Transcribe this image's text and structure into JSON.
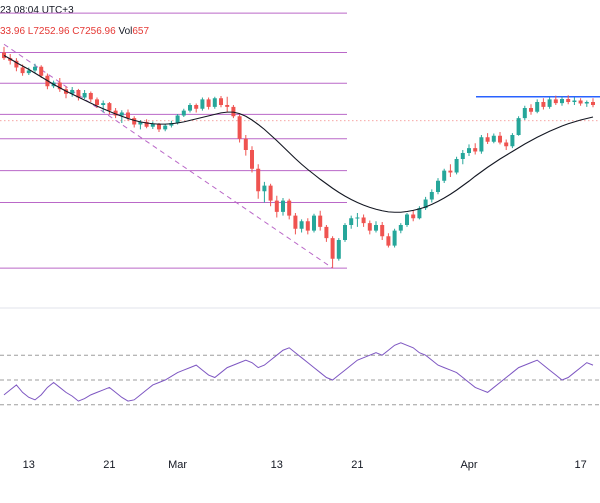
{
  "header": {
    "time_text": "23 08:04 UTC+3",
    "ohlc_text": "33.96  L7252.96  C7256.96",
    "vol_label": "Vol",
    "vol_value": "657"
  },
  "colors": {
    "up": "#26a69a",
    "down": "#ef5350",
    "fib_line": "#ba68c8",
    "ma_line": "#131722",
    "resistance": "#2962ff",
    "rsi_line": "#7e57c2",
    "rsi_band": "#9e9e9e"
  },
  "chart_data": [
    {
      "type": "candlestick",
      "title": "",
      "x": [
        "13",
        "21",
        "Mar",
        "13",
        "21",
        "Apr",
        "17"
      ],
      "xlabel": "",
      "ylabel": "",
      "ylim": [
        6900,
        7700
      ],
      "ohlc": [
        [
          7560,
          7575,
          7540,
          7545
        ],
        [
          7545,
          7556,
          7528,
          7538
        ],
        [
          7538,
          7545,
          7510,
          7520
        ],
        [
          7520,
          7528,
          7498,
          7505
        ],
        [
          7505,
          7520,
          7500,
          7512
        ],
        [
          7512,
          7530,
          7505,
          7522
        ],
        [
          7522,
          7526,
          7492,
          7498
        ],
        [
          7498,
          7504,
          7462,
          7470
        ],
        [
          7470,
          7485,
          7465,
          7480
        ],
        [
          7480,
          7492,
          7455,
          7462
        ],
        [
          7462,
          7470,
          7438,
          7450
        ],
        [
          7450,
          7468,
          7442,
          7460
        ],
        [
          7460,
          7463,
          7432,
          7440
        ],
        [
          7440,
          7460,
          7436,
          7452
        ],
        [
          7452,
          7456,
          7428,
          7435
        ],
        [
          7435,
          7440,
          7412,
          7420
        ],
        [
          7420,
          7432,
          7400,
          7425
        ],
        [
          7425,
          7428,
          7395,
          7405
        ],
        [
          7405,
          7412,
          7385,
          7392
        ],
        [
          7392,
          7406,
          7372,
          7400
        ],
        [
          7400,
          7408,
          7378,
          7385
        ],
        [
          7385,
          7390,
          7360,
          7368
        ],
        [
          7368,
          7380,
          7355,
          7375
        ],
        [
          7375,
          7382,
          7358,
          7362
        ],
        [
          7362,
          7376,
          7356,
          7370
        ],
        [
          7370,
          7372,
          7348,
          7355
        ],
        [
          7355,
          7368,
          7350,
          7365
        ],
        [
          7365,
          7378,
          7360,
          7372
        ],
        [
          7372,
          7396,
          7368,
          7392
        ],
        [
          7392,
          7410,
          7388,
          7405
        ],
        [
          7405,
          7425,
          7400,
          7420
        ],
        [
          7420,
          7424,
          7400,
          7410
        ],
        [
          7410,
          7440,
          7405,
          7435
        ],
        [
          7435,
          7440,
          7408,
          7415
        ],
        [
          7415,
          7442,
          7410,
          7438
        ],
        [
          7438,
          7444,
          7414,
          7420
        ],
        [
          7420,
          7442,
          7402,
          7415
        ],
        [
          7415,
          7420,
          7385,
          7390
        ],
        [
          7390,
          7395,
          7320,
          7330
        ],
        [
          7330,
          7340,
          7285,
          7300
        ],
        [
          7300,
          7310,
          7240,
          7250
        ],
        [
          7250,
          7262,
          7170,
          7190
        ],
        [
          7190,
          7215,
          7160,
          7205
        ],
        [
          7205,
          7210,
          7150,
          7165
        ],
        [
          7165,
          7178,
          7120,
          7135
        ],
        [
          7135,
          7172,
          7125,
          7165
        ],
        [
          7165,
          7170,
          7115,
          7125
        ],
        [
          7125,
          7132,
          7075,
          7090
        ],
        [
          7090,
          7115,
          7080,
          7110
        ],
        [
          7110,
          7118,
          7075,
          7085
        ],
        [
          7085,
          7130,
          7080,
          7125
        ],
        [
          7125,
          7138,
          7085,
          7095
        ],
        [
          7095,
          7100,
          7055,
          7065
        ],
        [
          7065,
          7070,
          6985,
          7010
        ],
        [
          7010,
          7065,
          7005,
          7060
        ],
        [
          7060,
          7105,
          7055,
          7100
        ],
        [
          7100,
          7125,
          7090,
          7118
        ],
        [
          7118,
          7132,
          7095,
          7120
        ],
        [
          7120,
          7128,
          7095,
          7105
        ],
        [
          7105,
          7112,
          7075,
          7085
        ],
        [
          7085,
          7110,
          7080,
          7100
        ],
        [
          7100,
          7108,
          7060,
          7070
        ],
        [
          7070,
          7078,
          7040,
          7045
        ],
        [
          7045,
          7090,
          7040,
          7085
        ],
        [
          7085,
          7105,
          7078,
          7100
        ],
        [
          7100,
          7132,
          7095,
          7128
        ],
        [
          7128,
          7140,
          7110,
          7118
        ],
        [
          7118,
          7150,
          7115,
          7145
        ],
        [
          7145,
          7175,
          7140,
          7168
        ],
        [
          7168,
          7195,
          7160,
          7188
        ],
        [
          7188,
          7225,
          7182,
          7218
        ],
        [
          7218,
          7250,
          7212,
          7245
        ],
        [
          7245,
          7262,
          7228,
          7240
        ],
        [
          7240,
          7282,
          7235,
          7276
        ],
        [
          7276,
          7300,
          7262,
          7292
        ],
        [
          7292,
          7315,
          7284,
          7305
        ],
        [
          7305,
          7318,
          7288,
          7296
        ],
        [
          7296,
          7340,
          7290,
          7334
        ],
        [
          7334,
          7345,
          7316,
          7322
        ],
        [
          7322,
          7344,
          7318,
          7338
        ],
        [
          7338,
          7348,
          7315,
          7320
        ],
        [
          7320,
          7328,
          7300,
          7310
        ],
        [
          7310,
          7345,
          7305,
          7340
        ],
        [
          7340,
          7390,
          7338,
          7385
        ],
        [
          7385,
          7418,
          7380,
          7412
        ],
        [
          7412,
          7422,
          7394,
          7402
        ],
        [
          7402,
          7435,
          7398,
          7428
        ],
        [
          7428,
          7438,
          7408,
          7415
        ],
        [
          7415,
          7440,
          7410,
          7435
        ],
        [
          7435,
          7445,
          7420,
          7425
        ],
        [
          7425,
          7442,
          7418,
          7436
        ],
        [
          7436,
          7446,
          7422,
          7428
        ],
        [
          7428,
          7440,
          7420,
          7432
        ],
        [
          7432,
          7438,
          7418,
          7424
        ],
        [
          7424,
          7432,
          7415,
          7428
        ],
        [
          7428,
          7438,
          7414,
          7420
        ]
      ],
      "moving_average": [
        7552,
        7543,
        7533,
        7524,
        7515,
        7505,
        7495,
        7485,
        7475,
        7466,
        7457,
        7449,
        7441,
        7433,
        7425,
        7417,
        7410,
        7403,
        7396,
        7390,
        7384,
        7379,
        7375,
        7372,
        7370,
        7369,
        7369,
        7370,
        7372,
        7375,
        7379,
        7383,
        7387,
        7391,
        7395,
        7399,
        7401,
        7401,
        7397,
        7390,
        7380,
        7368,
        7355,
        7340,
        7325,
        7309,
        7293,
        7277,
        7262,
        7248,
        7235,
        7222,
        7210,
        7198,
        7187,
        7177,
        7168,
        7160,
        7153,
        7147,
        7142,
        7138,
        7135,
        7134,
        7134,
        7136,
        7139,
        7143,
        7148,
        7155,
        7163,
        7172,
        7182,
        7193,
        7205,
        7217,
        7230,
        7242,
        7254,
        7265,
        7276,
        7286,
        7296,
        7306,
        7316,
        7325,
        7334,
        7342,
        7350,
        7357,
        7364,
        7370,
        7375,
        7380,
        7384,
        7388
      ],
      "fib_levels": [
        7665,
        7560,
        7478,
        7395,
        7330,
        7245,
        7160,
        6985
      ],
      "resistance_level": 7442,
      "dotted_level": 7378,
      "trend_line": {
        "from_index": 0,
        "from_value": 7582,
        "to_index": 53,
        "to_value": 6985
      }
    },
    {
      "type": "line",
      "title": "",
      "series": [
        {
          "values": [
            38,
            42,
            46,
            40,
            36,
            34,
            38,
            44,
            48,
            44,
            40,
            37,
            33,
            35,
            38,
            40,
            42,
            44,
            40,
            36,
            33,
            34,
            38,
            42,
            46,
            48,
            50,
            53,
            56,
            58,
            60,
            62,
            58,
            54,
            52,
            56,
            60,
            62,
            64,
            66,
            64,
            60,
            62,
            66,
            70,
            74,
            76,
            72,
            68,
            64,
            60,
            56,
            52,
            50,
            54,
            58,
            62,
            66,
            68,
            70,
            72,
            70,
            74,
            78,
            80,
            78,
            76,
            72,
            70,
            66,
            62,
            60,
            58,
            56,
            52,
            48,
            44,
            42,
            40,
            44,
            48,
            52,
            56,
            60,
            62,
            64,
            66,
            62,
            58,
            54,
            50,
            52,
            56,
            60,
            64,
            62
          ]
        }
      ],
      "ylim": [
        0,
        100
      ],
      "bands": [
        70,
        50,
        30
      ]
    }
  ]
}
